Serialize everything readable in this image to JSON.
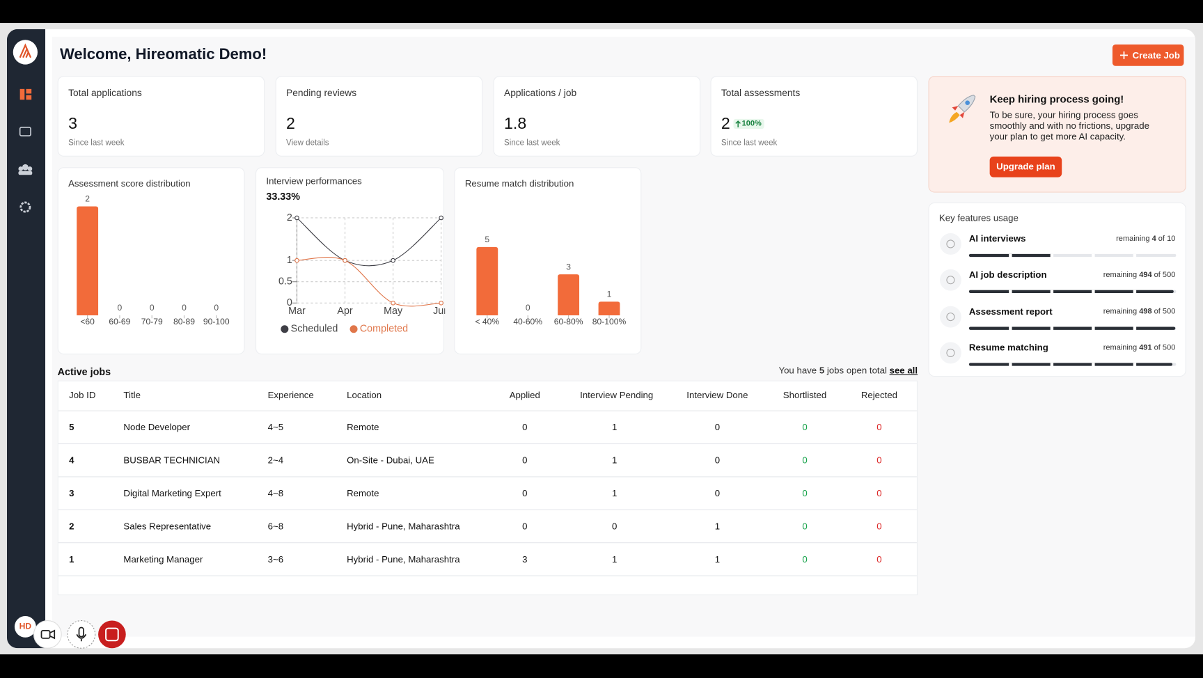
{
  "sidebar": {
    "avatar": "HD"
  },
  "header": {
    "title": "Welcome, Hireomatic Demo!",
    "button": "Create Job"
  },
  "stats": [
    {
      "label": "Total applications",
      "value": 3,
      "note": "Since last week"
    },
    {
      "label": "Pending reviews",
      "value": 2,
      "note": "View details"
    },
    {
      "label": "Applications / job",
      "value": 1.8,
      "note": "Since last week"
    },
    {
      "label": "Total assessments",
      "value": 2,
      "badge": "100%",
      "note": "Since last week"
    }
  ],
  "promo": {
    "title": "Keep hiring process going!",
    "text": [
      "To be sure, your hiring process goes",
      "smoothly and with no frictions, upgrade",
      "your plan to get more AI capacity."
    ],
    "button": "Upgrade plan"
  },
  "charts": [
    {
      "type": "bar",
      "title": "Assessment score distribution",
      "categories": [
        "<60",
        "60-69",
        "70-79",
        "80-89",
        "90-100"
      ],
      "values": [
        2,
        0,
        0,
        0,
        0
      ],
      "color": "#f26b3a"
    },
    {
      "type": "line",
      "title": "Interview performances",
      "subtitle": "33.33%",
      "categories": [
        "Mar",
        "Apr",
        "May",
        "Jun"
      ],
      "series": [
        {
          "name": "Scheduled",
          "color": "#3f3f46",
          "values": [
            2,
            1,
            1,
            2
          ]
        },
        {
          "name": "Completed",
          "color": "#e0764a",
          "values": [
            1,
            1,
            0,
            0
          ]
        }
      ],
      "ylim": [
        0,
        2
      ],
      "yticks": [
        0,
        0.5,
        1,
        2
      ],
      "grid": true
    },
    {
      "type": "bar",
      "title": "Resume match distribution",
      "categories": [
        "< 40%",
        "40-60%",
        "60-80%",
        "80-100%"
      ],
      "values": [
        5,
        0,
        3,
        1
      ],
      "color": "#f26b3a"
    }
  ],
  "features": {
    "title": "Key features usage",
    "remaining_label": "remaining",
    "of_label": "of",
    "items": [
      {
        "name": "AI interviews",
        "remaining": 4,
        "total": 10
      },
      {
        "name": "AI job description",
        "remaining": 494,
        "total": 500
      },
      {
        "name": "Assessment report",
        "remaining": 498,
        "total": 500
      },
      {
        "name": "Resume matching",
        "remaining": 491,
        "total": 500
      }
    ]
  },
  "jobs": {
    "title": "Active jobs",
    "summary": {
      "prefix": "You have",
      "count": 5,
      "suffix": "jobs open total",
      "link": "see all"
    },
    "columns": [
      "Job ID",
      "Title",
      "Experience",
      "Location",
      "Applied",
      "Interview Pending",
      "Interview Done",
      "Shortlisted",
      "Rejected"
    ],
    "rows": [
      [
        5,
        "Node Developer",
        "4~5",
        "Remote",
        0,
        1,
        0,
        0,
        0
      ],
      [
        4,
        "BUSBAR TECHNICIAN",
        "2~4",
        "On-Site - Dubai, UAE",
        0,
        1,
        0,
        0,
        0
      ],
      [
        3,
        "Digital Marketing Expert",
        "4~8",
        "Remote",
        0,
        1,
        0,
        0,
        0
      ],
      [
        2,
        "Sales Representative",
        "6~8",
        "Hybrid - Pune, Maharashtra",
        0,
        0,
        1,
        0,
        0
      ],
      [
        1,
        "Marketing Manager",
        "3~6",
        "Hybrid - Pune, Maharashtra",
        3,
        1,
        1,
        0,
        0
      ]
    ]
  }
}
